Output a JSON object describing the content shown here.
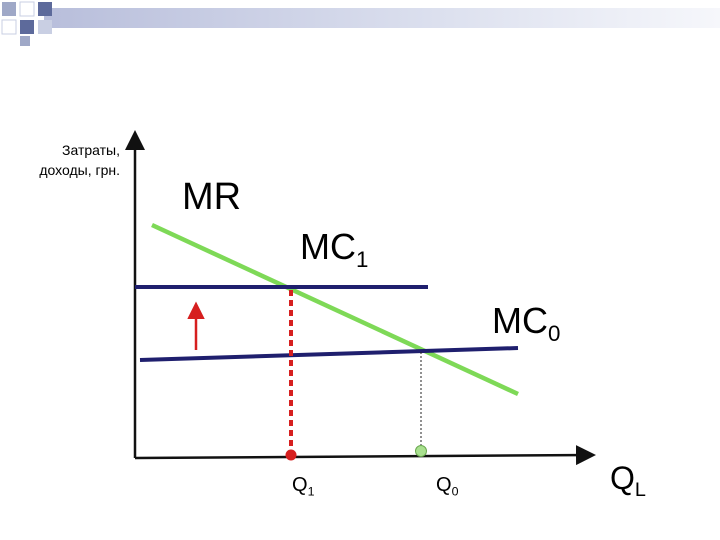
{
  "y_axis_label": [
    "Затраты,",
    "доходы, грн."
  ],
  "curves": {
    "mr": {
      "label": "MR",
      "color": "#7ed957"
    },
    "mc1": {
      "label": "MC",
      "subscript": "1",
      "color": "#1f1f6e"
    },
    "mc0": {
      "label": "MC",
      "subscript": "0",
      "color": "#1f1f6e"
    }
  },
  "x_ticks": {
    "q1": {
      "label": "Q",
      "subscript": "1"
    },
    "q0": {
      "label": "Q",
      "subscript": "0"
    }
  },
  "x_axis_label": {
    "label": "Q",
    "subscript": "L"
  },
  "colors": {
    "axis": "#111111",
    "shift_arrow": "#d61f1f",
    "q1_marker": "#d61f1f",
    "q0_marker": "#a9e08f",
    "q1_dropline": "#d61f1f",
    "q0_dropline": "#222222",
    "deco_squares": [
      "#9fa8c7",
      "#c9cfe3",
      "#5d6a9b"
    ]
  }
}
